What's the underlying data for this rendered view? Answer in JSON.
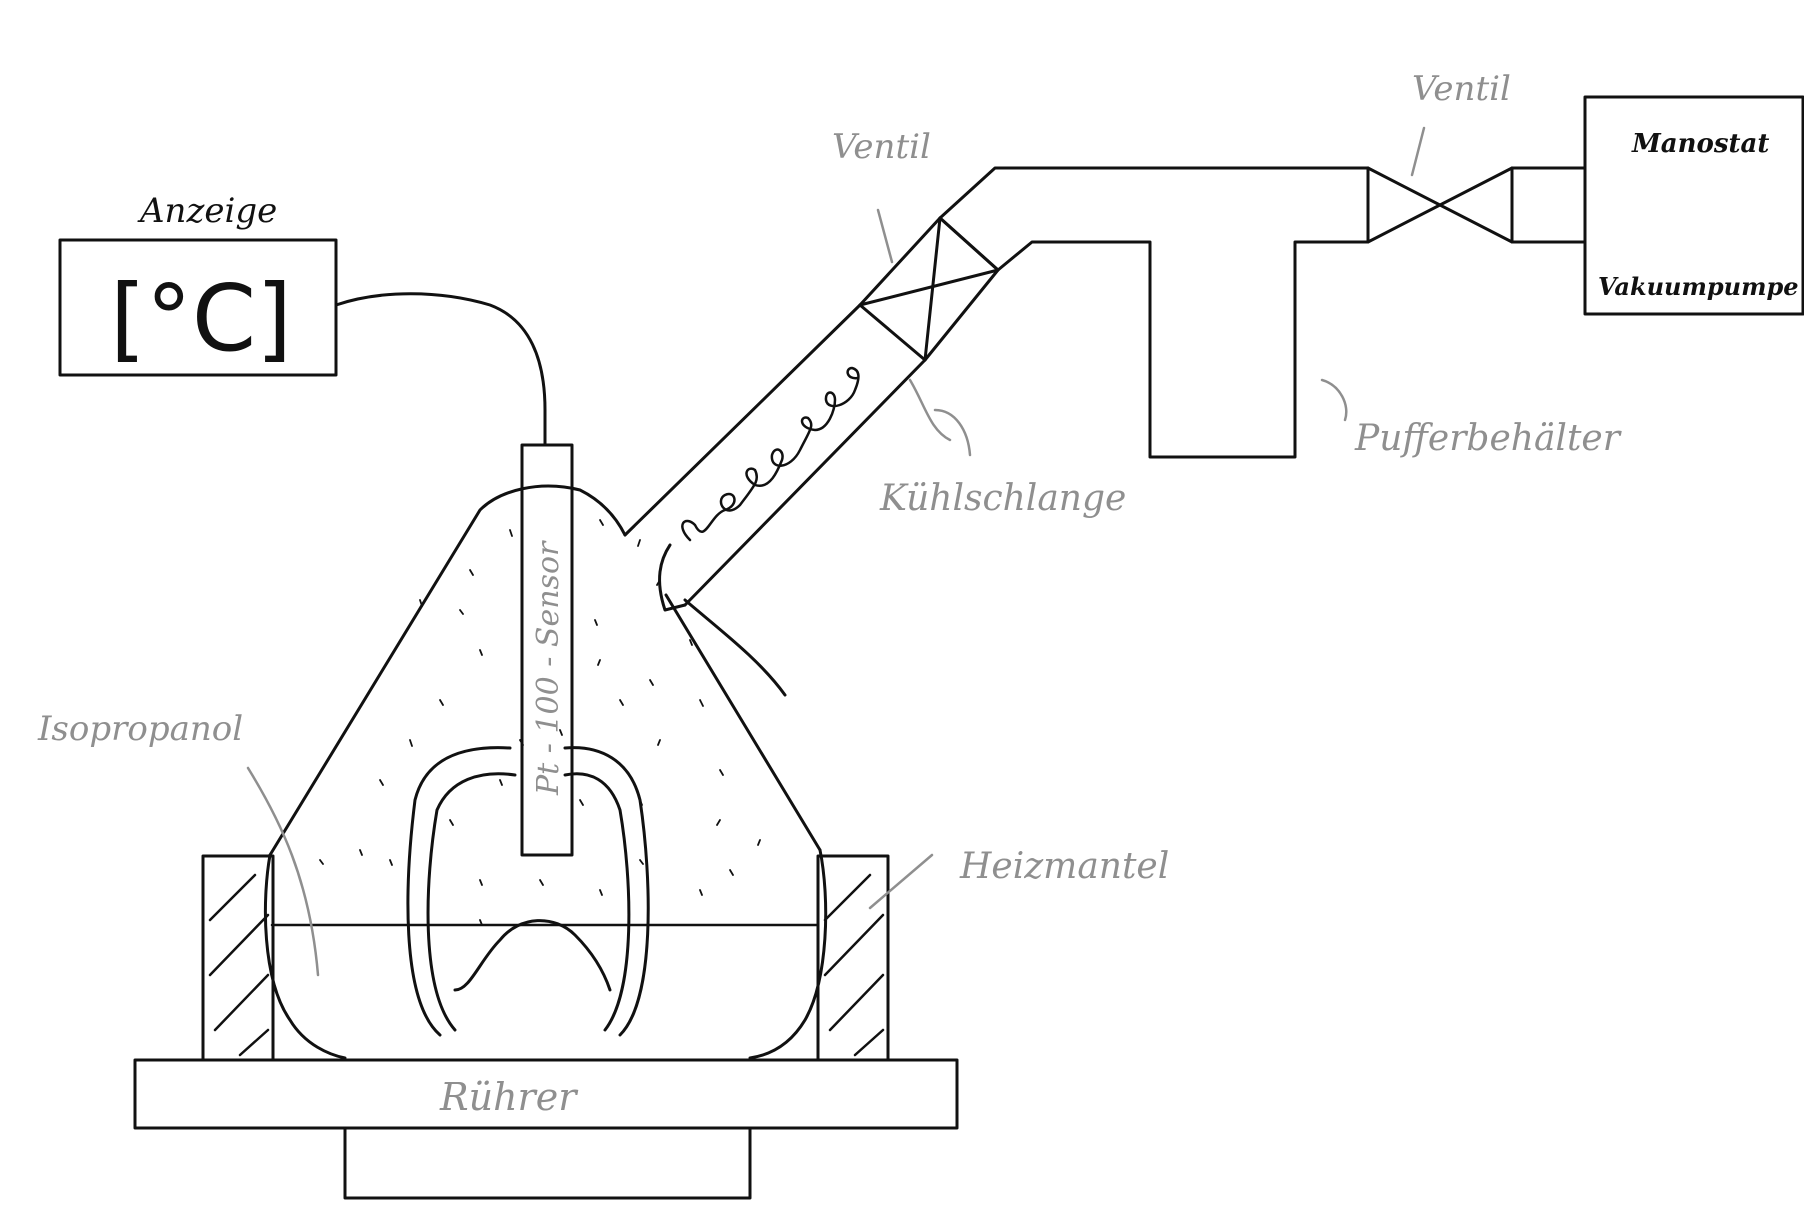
{
  "labels": {
    "display_title": "Anzeige",
    "display_readout": "[°C]",
    "sensor": "Pt - 100 - Sensor",
    "valve_left": "Ventil",
    "valve_right": "Ventil",
    "manostat": "Manostat",
    "vacuum_pump": "Vakuumpumpe",
    "buffer_tank": "Pufferbehälter",
    "cooling_coil": "Kühlschlange",
    "isopropanol": "Isopropanol",
    "heating_mantle": "Heizmantel",
    "stirrer": "Rührer"
  },
  "colors": {
    "ink": "#111111",
    "annotation": "#8f8f8f",
    "background": "#ffffff"
  }
}
